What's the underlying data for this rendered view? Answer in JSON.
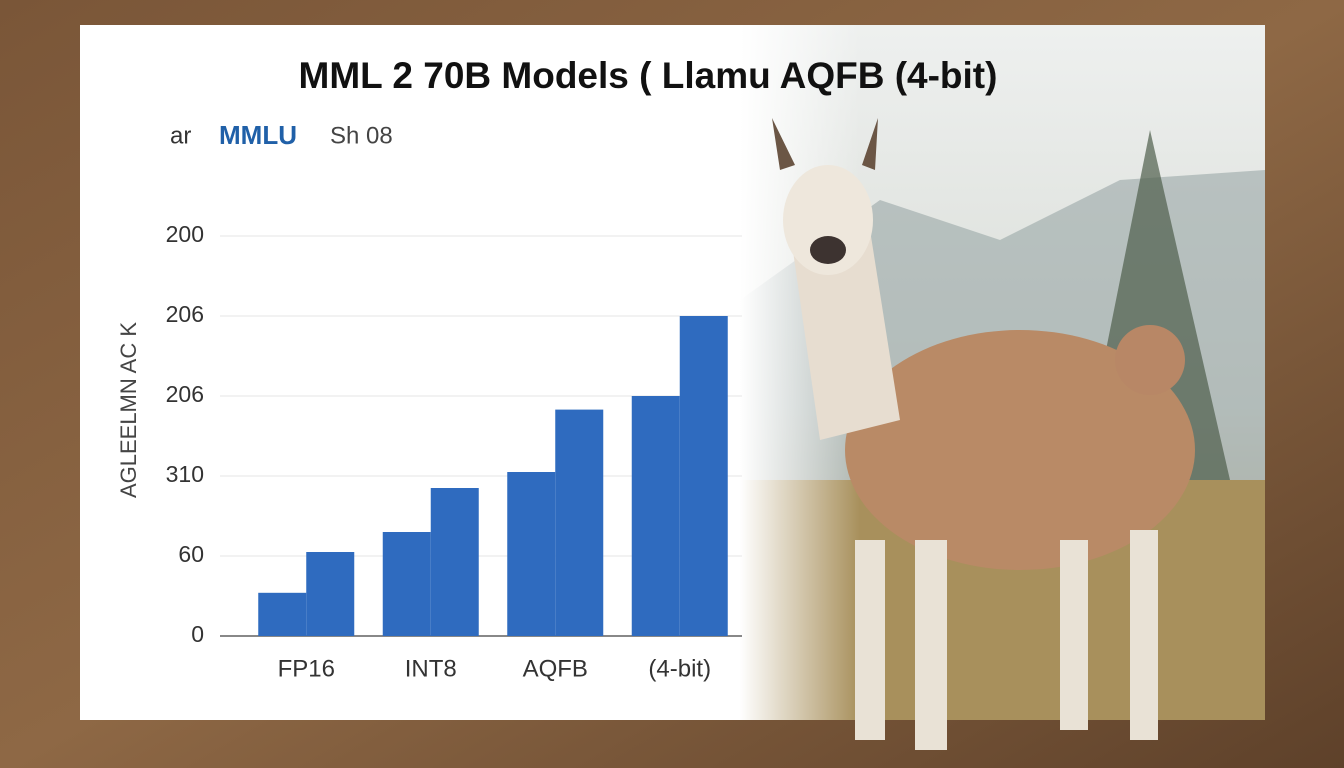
{
  "chart_data": {
    "type": "bar",
    "title": "MML 2 70B Models ( Llamu AQFB (4-bit)",
    "subtitle_parts": [
      "ar",
      "MMLU",
      "Sh 08"
    ],
    "y_label": "AGLEELMN AC K",
    "categories": [
      "FP16",
      "INT8",
      "AQFB",
      "(4-bit)"
    ],
    "series": [
      {
        "color": "#2f6bbf",
        "values": [
          0.54,
          1.3,
          2.05,
          3.0
        ]
      },
      {
        "color": "#2f6bbf",
        "values": [
          1.05,
          1.85,
          2.83,
          4.0
        ]
      }
    ],
    "ylim": [
      0,
      5
    ],
    "yticks": [
      0,
      {
        "value": 1,
        "label": "60"
      },
      {
        "value": 2,
        "label": "310"
      },
      {
        "value": 3,
        "label": "206"
      },
      {
        "value": 4,
        "label": "206"
      },
      {
        "value": 5,
        "label": "200"
      }
    ],
    "grid": true
  }
}
